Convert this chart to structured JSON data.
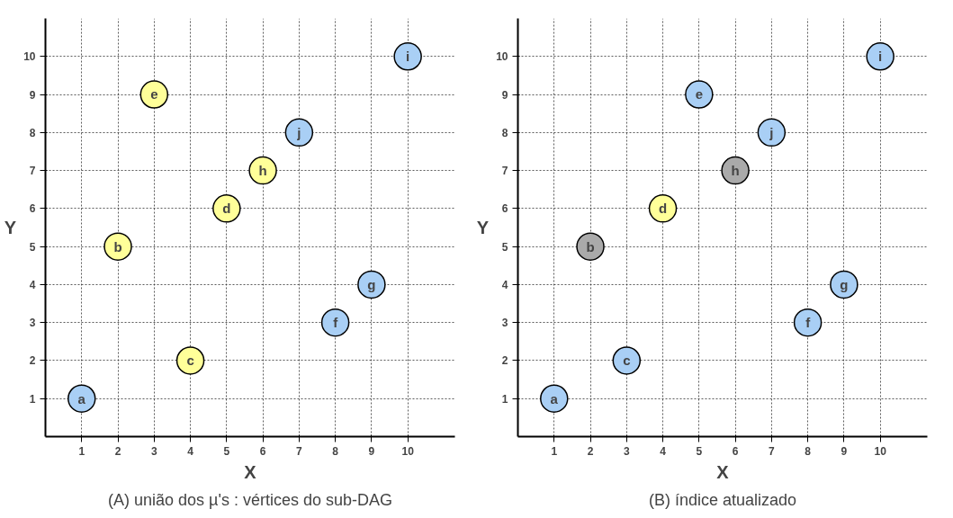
{
  "chart_data": [
    {
      "type": "scatter",
      "title": "(A) união dos µ's : vértices do sub-DAG",
      "xlabel": "X",
      "ylabel": "Y",
      "xlim": [
        0,
        11.3
      ],
      "ylim": [
        0,
        11
      ],
      "xticks": [
        1,
        2,
        3,
        4,
        5,
        6,
        7,
        8,
        9,
        10
      ],
      "yticks": [
        1,
        2,
        3,
        4,
        5,
        6,
        7,
        8,
        9,
        10
      ],
      "grid": true,
      "marker": "circle",
      "series": [
        {
          "color": "#a9cff5",
          "x": [
            1,
            8,
            9,
            10,
            7
          ],
          "values": [
            1,
            3,
            4,
            10,
            8
          ]
        },
        {
          "color": "#ffff99",
          "x": [
            2,
            4,
            5,
            3,
            6
          ],
          "values": [
            5,
            2,
            6,
            9,
            7
          ]
        }
      ],
      "annotations": [
        {
          "text": "a",
          "x": 1,
          "y": 1
        },
        {
          "text": "b",
          "x": 2,
          "y": 5
        },
        {
          "text": "c",
          "x": 4,
          "y": 2
        },
        {
          "text": "d",
          "x": 5,
          "y": 6
        },
        {
          "text": "e",
          "x": 3,
          "y": 9
        },
        {
          "text": "f",
          "x": 8,
          "y": 3
        },
        {
          "text": "g",
          "x": 9,
          "y": 4
        },
        {
          "text": "h",
          "x": 6,
          "y": 7
        },
        {
          "text": "i",
          "x": 10,
          "y": 10
        },
        {
          "text": "j",
          "x": 7,
          "y": 8
        }
      ]
    },
    {
      "type": "scatter",
      "title": "(B) índice atualizado",
      "xlabel": "X",
      "ylabel": "Y",
      "xlim": [
        0,
        11.3
      ],
      "ylim": [
        0,
        11
      ],
      "xticks": [
        1,
        2,
        3,
        4,
        5,
        6,
        7,
        8,
        9,
        10
      ],
      "yticks": [
        1,
        2,
        3,
        4,
        5,
        6,
        7,
        8,
        9,
        10
      ],
      "grid": true,
      "marker": "circle",
      "series": [
        {
          "color": "#a9cff5",
          "x": [
            1,
            3,
            5,
            8,
            9,
            10,
            7
          ],
          "values": [
            1,
            2,
            9,
            3,
            4,
            10,
            8
          ]
        },
        {
          "color": "#ffff99",
          "x": [
            4
          ],
          "values": [
            6
          ]
        },
        {
          "color": "#aaaaaa",
          "x": [
            2,
            6
          ],
          "values": [
            5,
            7
          ]
        }
      ],
      "annotations": [
        {
          "text": "a",
          "x": 1,
          "y": 1
        },
        {
          "text": "b",
          "x": 2,
          "y": 5
        },
        {
          "text": "c",
          "x": 3,
          "y": 2
        },
        {
          "text": "d",
          "x": 4,
          "y": 6
        },
        {
          "text": "e",
          "x": 5,
          "y": 9
        },
        {
          "text": "f",
          "x": 8,
          "y": 3
        },
        {
          "text": "g",
          "x": 9,
          "y": 4
        },
        {
          "text": "h",
          "x": 6,
          "y": 7
        },
        {
          "text": "i",
          "x": 10,
          "y": 10
        },
        {
          "text": "j",
          "x": 7,
          "y": 8
        }
      ]
    }
  ]
}
